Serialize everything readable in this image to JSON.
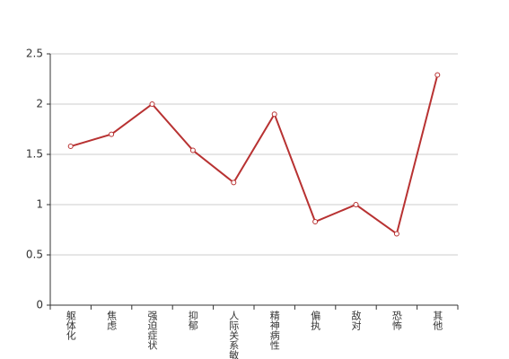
{
  "chart_data": {
    "type": "line",
    "categories": [
      "躯体化",
      "焦虑",
      "强迫症状",
      "抑郁",
      "人际关系敏感",
      "精神病性",
      "偏执",
      "敌对",
      "恐怖",
      "其他"
    ],
    "series": [
      {
        "color": "#b83232",
        "values": [
          1.58,
          1.7,
          2.0,
          1.54,
          1.22,
          1.9,
          0.83,
          1.0,
          0.71,
          2.29
        ]
      }
    ],
    "ylim": [
      0,
      2.5
    ],
    "yticks": [
      0,
      0.5,
      1,
      1.5,
      2,
      2.5
    ],
    "grid": true
  }
}
